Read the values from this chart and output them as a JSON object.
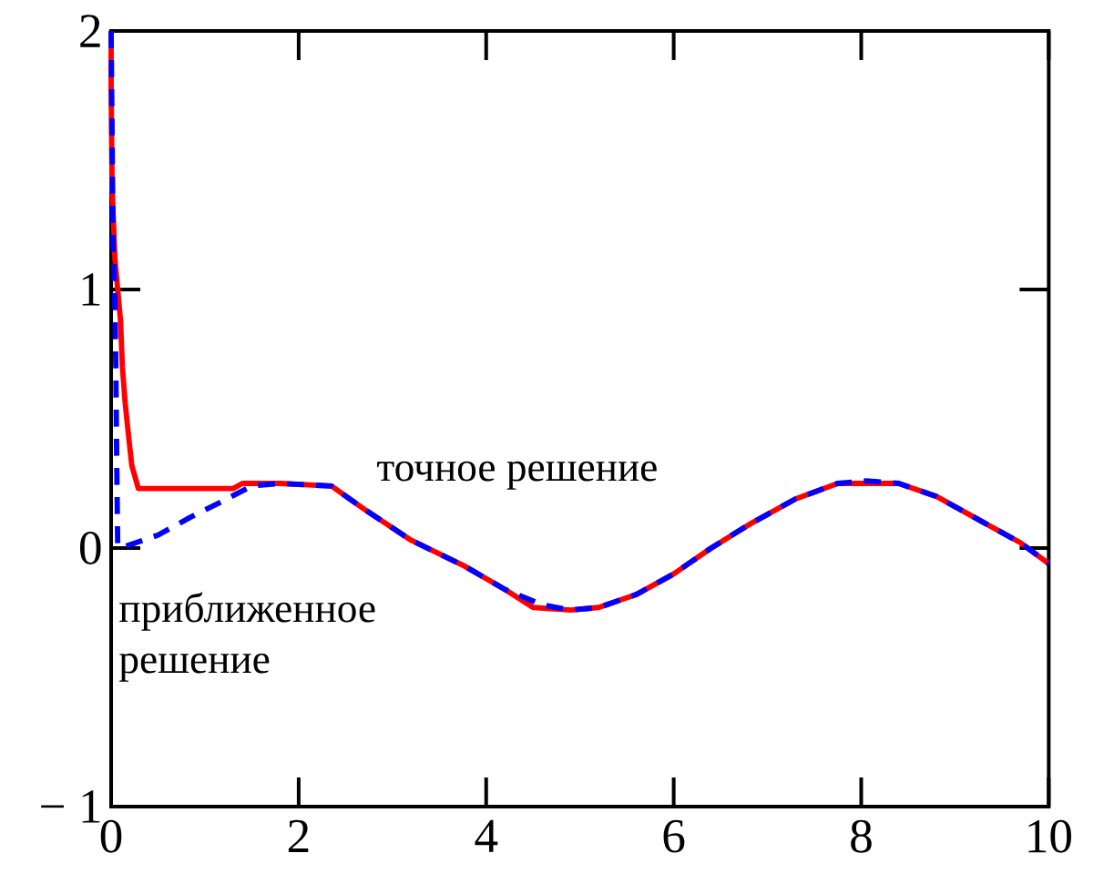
{
  "chart_data": {
    "type": "line",
    "annotations": [
      "точное решение",
      "приближенное решение"
    ],
    "series": [
      {
        "color": "#0000ff",
        "line_style": "dashed",
        "x": [
          0,
          0.02,
          0.04,
          0.05,
          0.06,
          0.07,
          0.1,
          0.5,
          0.85,
          1.18,
          1.5,
          1.8,
          2.35,
          2.7,
          3.2,
          3.77,
          4.2,
          4.6,
          4.9,
          5.2,
          5.6,
          6.0,
          6.4,
          6.8,
          7.3,
          7.75,
          8.05,
          8.4,
          8.8,
          9.3,
          9.7,
          10
        ],
        "values": [
          2,
          1.2,
          0.95,
          0.7,
          0.32,
          0.01,
          0,
          0.05,
          0.12,
          0.18,
          0.24,
          0.25,
          0.24,
          0.15,
          0.03,
          -0.07,
          -0.16,
          -0.22,
          -0.24,
          -0.23,
          -0.18,
          -0.1,
          0.0,
          0.09,
          0.19,
          0.25,
          0.26,
          0.25,
          0.2,
          0.1,
          0.02,
          -0.06
        ]
      },
      {
        "color": "#ff0000",
        "line_style": "solid",
        "x": [
          0,
          0,
          0.01,
          0.04,
          0.1,
          0.12,
          0.15,
          0.19,
          0.22,
          0.29,
          0.6,
          1.3,
          1.4,
          1.8,
          2.35,
          2.7,
          3.2,
          3.77,
          4.2,
          4.5,
          4.9,
          5.2,
          5.6,
          6.0,
          6.4,
          6.8,
          7.3,
          7.75,
          8.05,
          8.4,
          8.8,
          9.3,
          9.7,
          10
        ],
        "values": [
          2,
          1.77,
          1.4,
          1.12,
          0.88,
          0.7,
          0.56,
          0.42,
          0.32,
          0.23,
          0.23,
          0.23,
          0.25,
          0.25,
          0.24,
          0.15,
          0.03,
          -0.07,
          -0.16,
          -0.23,
          -0.24,
          -0.23,
          -0.18,
          -0.1,
          0.0,
          0.09,
          0.19,
          0.25,
          0.25,
          0.25,
          0.2,
          0.1,
          0.02,
          -0.06
        ]
      }
    ],
    "xlim": [
      0,
      10
    ],
    "ylim": [
      -1,
      2
    ],
    "xticks": [
      0,
      2,
      4,
      6,
      8,
      10
    ],
    "yticks": [
      {
        "value": -1,
        "label": "− 1"
      },
      0,
      1,
      2
    ],
    "grid": false,
    "marker": "none"
  }
}
